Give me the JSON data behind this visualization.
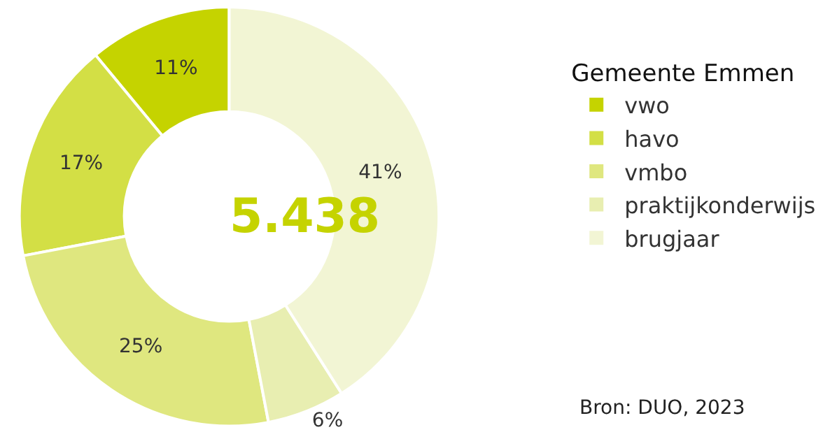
{
  "chart_data": {
    "type": "donut",
    "legend_title": "Gemeente Emmen",
    "categories": [
      "vwo",
      "havo",
      "vmbo",
      "praktijkonderwijs",
      "brugjaar"
    ],
    "values": [
      11,
      17,
      25,
      6,
      41
    ],
    "value_labels": [
      "11%",
      "17%",
      "25%",
      "6%",
      "41%"
    ],
    "colors": [
      "#c5d300",
      "#d3df45",
      "#dfe77f",
      "#e8eeb1",
      "#f2f5d4"
    ],
    "legend": "right",
    "annotations": [
      "5.438",
      "Bron: DUO, 2023"
    ]
  }
}
